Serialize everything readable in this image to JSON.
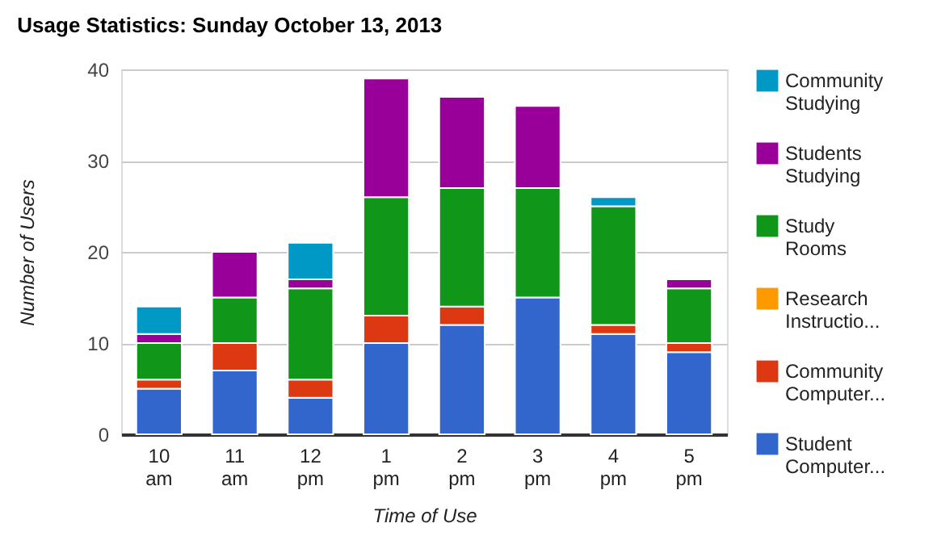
{
  "chart_data": {
    "type": "bar",
    "title": "Usage Statistics: Sunday October 13, 2013",
    "xlabel": "Time of Use",
    "ylabel": "Number of Users",
    "categories": [
      "10 am",
      "11 am",
      "12 pm",
      "1 pm",
      "2 pm",
      "3 pm",
      "4 pm",
      "5 pm"
    ],
    "stacked": true,
    "ylim": [
      0,
      40
    ],
    "yticks": [
      0,
      10,
      20,
      30,
      40
    ],
    "grid": "y",
    "legend": "right",
    "series": [
      {
        "name": "Student Computer...",
        "color": "#3366cc",
        "values": [
          5,
          7,
          4,
          10,
          12,
          15,
          11,
          9
        ]
      },
      {
        "name": "Community Computer...",
        "color": "#dc3912",
        "values": [
          1,
          3,
          2,
          3,
          2,
          0,
          1,
          1
        ]
      },
      {
        "name": "Research Instructio...",
        "color": "#ff9900",
        "values": [
          0,
          0,
          0,
          0,
          0,
          0,
          0,
          0
        ]
      },
      {
        "name": "Study Rooms",
        "color": "#109618",
        "values": [
          4,
          5,
          10,
          13,
          13,
          12,
          13,
          6
        ]
      },
      {
        "name": "Students Studying",
        "color": "#990099",
        "values": [
          1,
          5,
          1,
          13,
          10,
          9,
          0,
          1
        ]
      },
      {
        "name": "Community Studying",
        "color": "#0099c6",
        "values": [
          3,
          0,
          4,
          0,
          0,
          0,
          1,
          0
        ]
      }
    ]
  }
}
